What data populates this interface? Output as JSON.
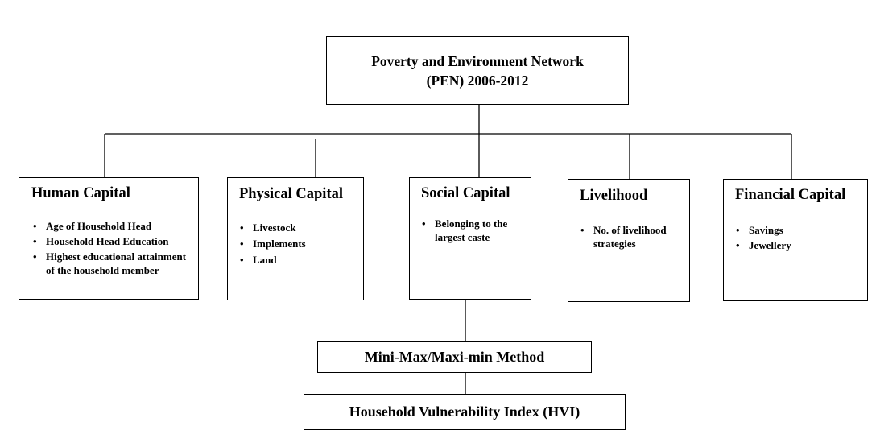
{
  "root": {
    "line1": "Poverty and Environment Network",
    "line2": "(PEN) 2006-2012"
  },
  "capitals": [
    {
      "title": "Human Capital",
      "items": [
        "Age of Household Head",
        "Household Head Education",
        "Highest educational attainment of the household member"
      ]
    },
    {
      "title": "Physical Capital",
      "items": [
        "Livestock",
        "Implements",
        "Land"
      ]
    },
    {
      "title": "Social Capital",
      "items": [
        "Belonging to the largest caste"
      ]
    },
    {
      "title": "Livelihood",
      "items": [
        "No. of livelihood strategies"
      ]
    },
    {
      "title": "Financial Capital",
      "items": [
        "Savings",
        "Jewellery"
      ]
    }
  ],
  "method": {
    "label": "Mini-Max/Maxi-min Method"
  },
  "output": {
    "label": "Household Vulnerability Index (HVI)"
  }
}
